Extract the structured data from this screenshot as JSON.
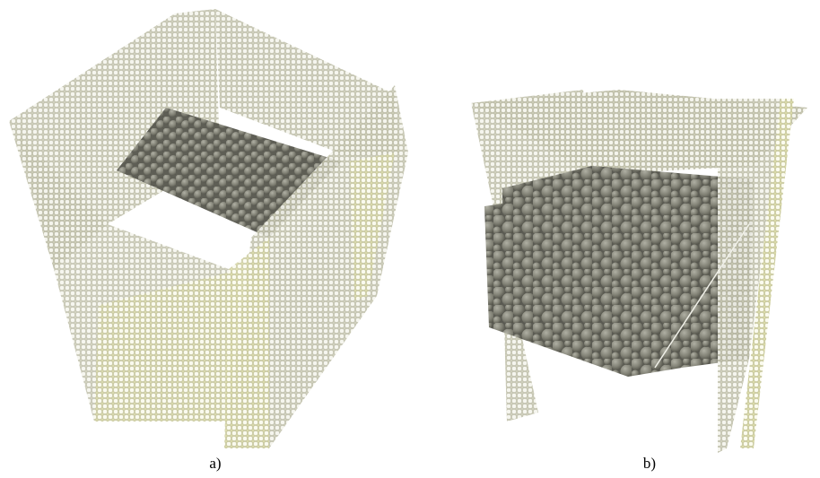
{
  "panels": [
    {
      "caption": "a)"
    },
    {
      "caption": "b)"
    }
  ]
}
